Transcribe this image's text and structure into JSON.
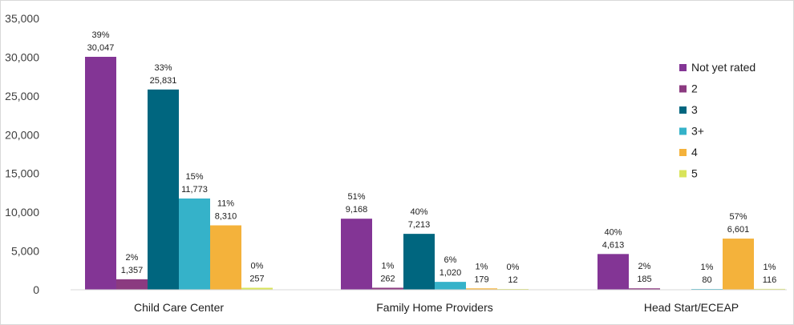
{
  "chart_data": {
    "type": "bar",
    "title": "",
    "xlabel": "",
    "ylabel": "",
    "ylim": [
      0,
      35000
    ],
    "yticks": [
      0,
      5000,
      10000,
      15000,
      20000,
      25000,
      30000,
      35000
    ],
    "ytick_labels": [
      "0",
      "5,000",
      "10,000",
      "15,000",
      "20,000",
      "25,000",
      "30,000",
      "35,000"
    ],
    "grid": false,
    "legend_position": "right",
    "categories": [
      "Child Care Center",
      "Family Home Providers",
      "Head Start/ECEAP"
    ],
    "series": [
      {
        "name": "Not yet rated",
        "color": "#833595",
        "values": [
          30047,
          9168,
          4613
        ],
        "value_labels": [
          "30,047",
          "9,168",
          "4,613"
        ],
        "percent_labels": [
          "39%",
          "51%",
          "40%"
        ]
      },
      {
        "name": "2",
        "color": "#8b3a80",
        "values": [
          1357,
          262,
          185
        ],
        "value_labels": [
          "1,357",
          "262",
          "185"
        ],
        "percent_labels": [
          "2%",
          "1%",
          "2%"
        ]
      },
      {
        "name": "3",
        "color": "#00667f",
        "values": [
          25831,
          7213,
          null
        ],
        "value_labels": [
          "25,831",
          "7,213",
          ""
        ],
        "percent_labels": [
          "33%",
          "40%",
          ""
        ]
      },
      {
        "name": "3+",
        "color": "#35b2c9",
        "values": [
          11773,
          1020,
          80
        ],
        "value_labels": [
          "11,773",
          "1,020",
          "80"
        ],
        "percent_labels": [
          "15%",
          "6%",
          "1%"
        ]
      },
      {
        "name": "4",
        "color": "#f4b23b",
        "values": [
          8310,
          179,
          6601
        ],
        "value_labels": [
          "8,310",
          "179",
          "6,601"
        ],
        "percent_labels": [
          "11%",
          "1%",
          "57%"
        ]
      },
      {
        "name": "5",
        "color": "#d9e45a",
        "values": [
          257,
          12,
          116
        ],
        "value_labels": [
          "257",
          "12",
          "116"
        ],
        "percent_labels": [
          "0%",
          "0%",
          "1%"
        ]
      }
    ]
  }
}
